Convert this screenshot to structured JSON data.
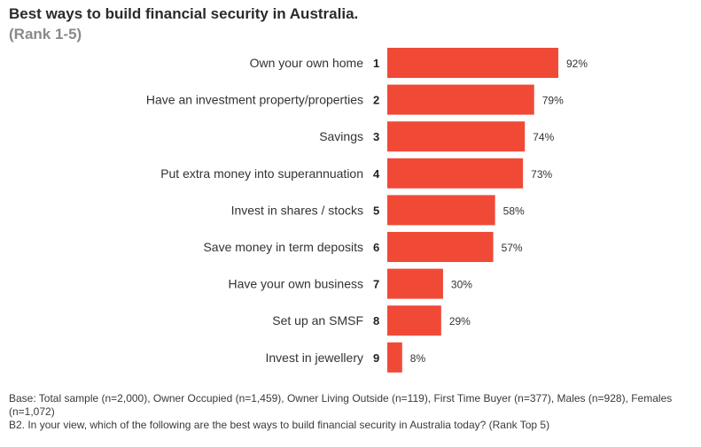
{
  "chart_data": {
    "type": "bar",
    "orientation": "horizontal",
    "title": "Best ways to build financial security in Australia.",
    "subtitle": "(Rank 1-5)",
    "categories": [
      "Own your own home",
      "Have an investment property/properties",
      "Savings",
      "Put extra money into superannuation",
      "Invest in shares / stocks",
      "Save money in term deposits",
      "Have your own business",
      "Set up an SMSF",
      "Invest in jewellery"
    ],
    "ranks": [
      "1",
      "2",
      "3",
      "4",
      "5",
      "6",
      "7",
      "8",
      "9"
    ],
    "values": [
      92,
      79,
      74,
      73,
      58,
      57,
      30,
      29,
      8
    ],
    "value_labels": [
      "92%",
      "79%",
      "74%",
      "73%",
      "58%",
      "57%",
      "30%",
      "29%",
      "8%"
    ],
    "xlim": [
      0,
      100
    ],
    "grid": false,
    "bar_color": "#f04a37"
  },
  "footnotes": {
    "base": "Base: Total sample (n=2,000), Owner Occupied (n=1,459), Owner Living Outside (n=119), First Time Buyer (n=377), Males (n=928), Females (n=1,072)",
    "question": "B2. In your view, which of the following are the best ways to build financial security in Australia today? (Rank Top 5)"
  }
}
